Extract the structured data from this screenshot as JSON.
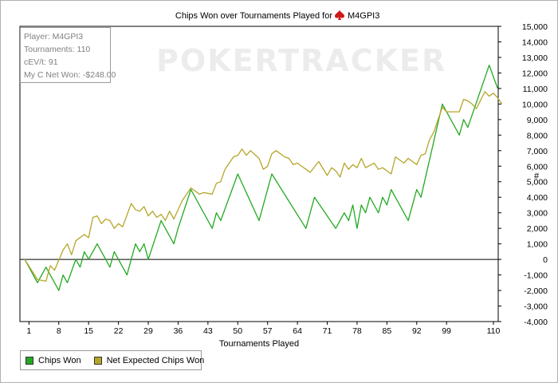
{
  "title_prefix": "Chips Won over Tournaments Played for",
  "player_name": "M4GPI3",
  "watermark": "POKERTRACKER",
  "info": {
    "player": "Player: M4GPI3",
    "tournaments": "Tournaments: 110",
    "cev": "cEV/t: 91",
    "net_won": "My C Net Won: -$248.00"
  },
  "legend": [
    {
      "label": "Chips Won",
      "color": "#22aa22"
    },
    {
      "label": "Net Expected Chips Won",
      "color": "#b5a62a"
    }
  ],
  "chart_data": {
    "type": "line",
    "title": "Chips Won over Tournaments Played for M4GPI3",
    "xlabel": "Tournaments Played",
    "ylabel": "#",
    "xlim": [
      0,
      110
    ],
    "ylim": [
      -4000,
      15000
    ],
    "x_ticks": [
      1,
      8,
      15,
      22,
      29,
      36,
      43,
      50,
      57,
      64,
      71,
      78,
      85,
      92,
      99,
      110
    ],
    "y_ticks": [
      -4000,
      -3000,
      -2000,
      -1000,
      0,
      1000,
      2000,
      3000,
      4000,
      5000,
      6000,
      7000,
      8000,
      9000,
      10000,
      11000,
      12000,
      13000,
      14000,
      15000
    ],
    "series": [
      {
        "name": "Chips Won",
        "color": "#22aa22",
        "points": [
          [
            0,
            0
          ],
          [
            3,
            -1500
          ],
          [
            5,
            -500
          ],
          [
            8,
            -2000
          ],
          [
            9,
            -1000
          ],
          [
            10,
            -1500
          ],
          [
            12,
            0
          ],
          [
            13,
            -500
          ],
          [
            14,
            500
          ],
          [
            15,
            0
          ],
          [
            17,
            1000
          ],
          [
            20,
            -500
          ],
          [
            21,
            500
          ],
          [
            24,
            -1000
          ],
          [
            26,
            1000
          ],
          [
            27,
            500
          ],
          [
            28,
            1000
          ],
          [
            29,
            0
          ],
          [
            32,
            2500
          ],
          [
            35,
            1000
          ],
          [
            36,
            2000
          ],
          [
            39,
            4500
          ],
          [
            44,
            2000
          ],
          [
            45,
            3000
          ],
          [
            46,
            2500
          ],
          [
            50,
            5500
          ],
          [
            55,
            2500
          ],
          [
            58,
            5500
          ],
          [
            66,
            2000
          ],
          [
            68,
            4000
          ],
          [
            73,
            2000
          ],
          [
            75,
            3000
          ],
          [
            76,
            2500
          ],
          [
            77,
            3500
          ],
          [
            78,
            2000
          ],
          [
            79,
            3500
          ],
          [
            80,
            3000
          ],
          [
            81,
            4000
          ],
          [
            83,
            3000
          ],
          [
            84,
            4000
          ],
          [
            85,
            3500
          ],
          [
            86,
            4500
          ],
          [
            90,
            2500
          ],
          [
            92,
            4500
          ],
          [
            93,
            4000
          ],
          [
            98,
            10000
          ],
          [
            102,
            8000
          ],
          [
            103,
            9000
          ],
          [
            104,
            8500
          ],
          [
            109,
            12500
          ],
          [
            111,
            11000
          ]
        ]
      },
      {
        "name": "Net Expected Chips Won",
        "color": "#b5a62a",
        "points": [
          [
            0,
            0
          ],
          [
            3,
            -1300
          ],
          [
            5,
            -1400
          ],
          [
            6,
            -400
          ],
          [
            7,
            -700
          ],
          [
            9,
            600
          ],
          [
            10,
            1000
          ],
          [
            11,
            300
          ],
          [
            12,
            1200
          ],
          [
            14,
            1600
          ],
          [
            15,
            1400
          ],
          [
            16,
            2700
          ],
          [
            17,
            2800
          ],
          [
            18,
            2300
          ],
          [
            19,
            2600
          ],
          [
            20,
            2500
          ],
          [
            21,
            2000
          ],
          [
            22,
            2300
          ],
          [
            23,
            2100
          ],
          [
            25,
            3600
          ],
          [
            26,
            3200
          ],
          [
            27,
            3100
          ],
          [
            28,
            3400
          ],
          [
            29,
            2800
          ],
          [
            30,
            3100
          ],
          [
            31,
            2700
          ],
          [
            32,
            2900
          ],
          [
            33,
            2500
          ],
          [
            34,
            3100
          ],
          [
            35,
            2600
          ],
          [
            37,
            3800
          ],
          [
            39,
            4600
          ],
          [
            41,
            4200
          ],
          [
            42,
            4300
          ],
          [
            44,
            4200
          ],
          [
            45,
            4900
          ],
          [
            46,
            5000
          ],
          [
            47,
            5800
          ],
          [
            49,
            6600
          ],
          [
            50,
            6700
          ],
          [
            51,
            7100
          ],
          [
            52,
            6700
          ],
          [
            53,
            7000
          ],
          [
            55,
            6500
          ],
          [
            56,
            5800
          ],
          [
            57,
            6000
          ],
          [
            58,
            6800
          ],
          [
            59,
            7000
          ],
          [
            61,
            6600
          ],
          [
            62,
            6500
          ],
          [
            63,
            6100
          ],
          [
            64,
            6200
          ],
          [
            66,
            5800
          ],
          [
            67,
            5600
          ],
          [
            69,
            6300
          ],
          [
            71,
            5400
          ],
          [
            72,
            5900
          ],
          [
            73,
            5700
          ],
          [
            74,
            5300
          ],
          [
            75,
            6200
          ],
          [
            76,
            5800
          ],
          [
            77,
            6100
          ],
          [
            78,
            5900
          ],
          [
            79,
            6500
          ],
          [
            80,
            5900
          ],
          [
            82,
            6200
          ],
          [
            83,
            5800
          ],
          [
            84,
            5900
          ],
          [
            85,
            5700
          ],
          [
            86,
            5500
          ],
          [
            87,
            6600
          ],
          [
            88,
            6400
          ],
          [
            89,
            6200
          ],
          [
            90,
            6500
          ],
          [
            92,
            6100
          ],
          [
            93,
            6700
          ],
          [
            94,
            6800
          ],
          [
            95,
            7700
          ],
          [
            96,
            8200
          ],
          [
            98,
            9800
          ],
          [
            99,
            9500
          ],
          [
            102,
            9500
          ],
          [
            103,
            10300
          ],
          [
            104,
            10200
          ],
          [
            105,
            10000
          ],
          [
            106,
            9700
          ],
          [
            108,
            10800
          ],
          [
            109,
            10500
          ],
          [
            110,
            10700
          ],
          [
            111,
            10400
          ],
          [
            112,
            10000
          ]
        ]
      }
    ],
    "grid": false,
    "legend_position": "bottom-left"
  }
}
